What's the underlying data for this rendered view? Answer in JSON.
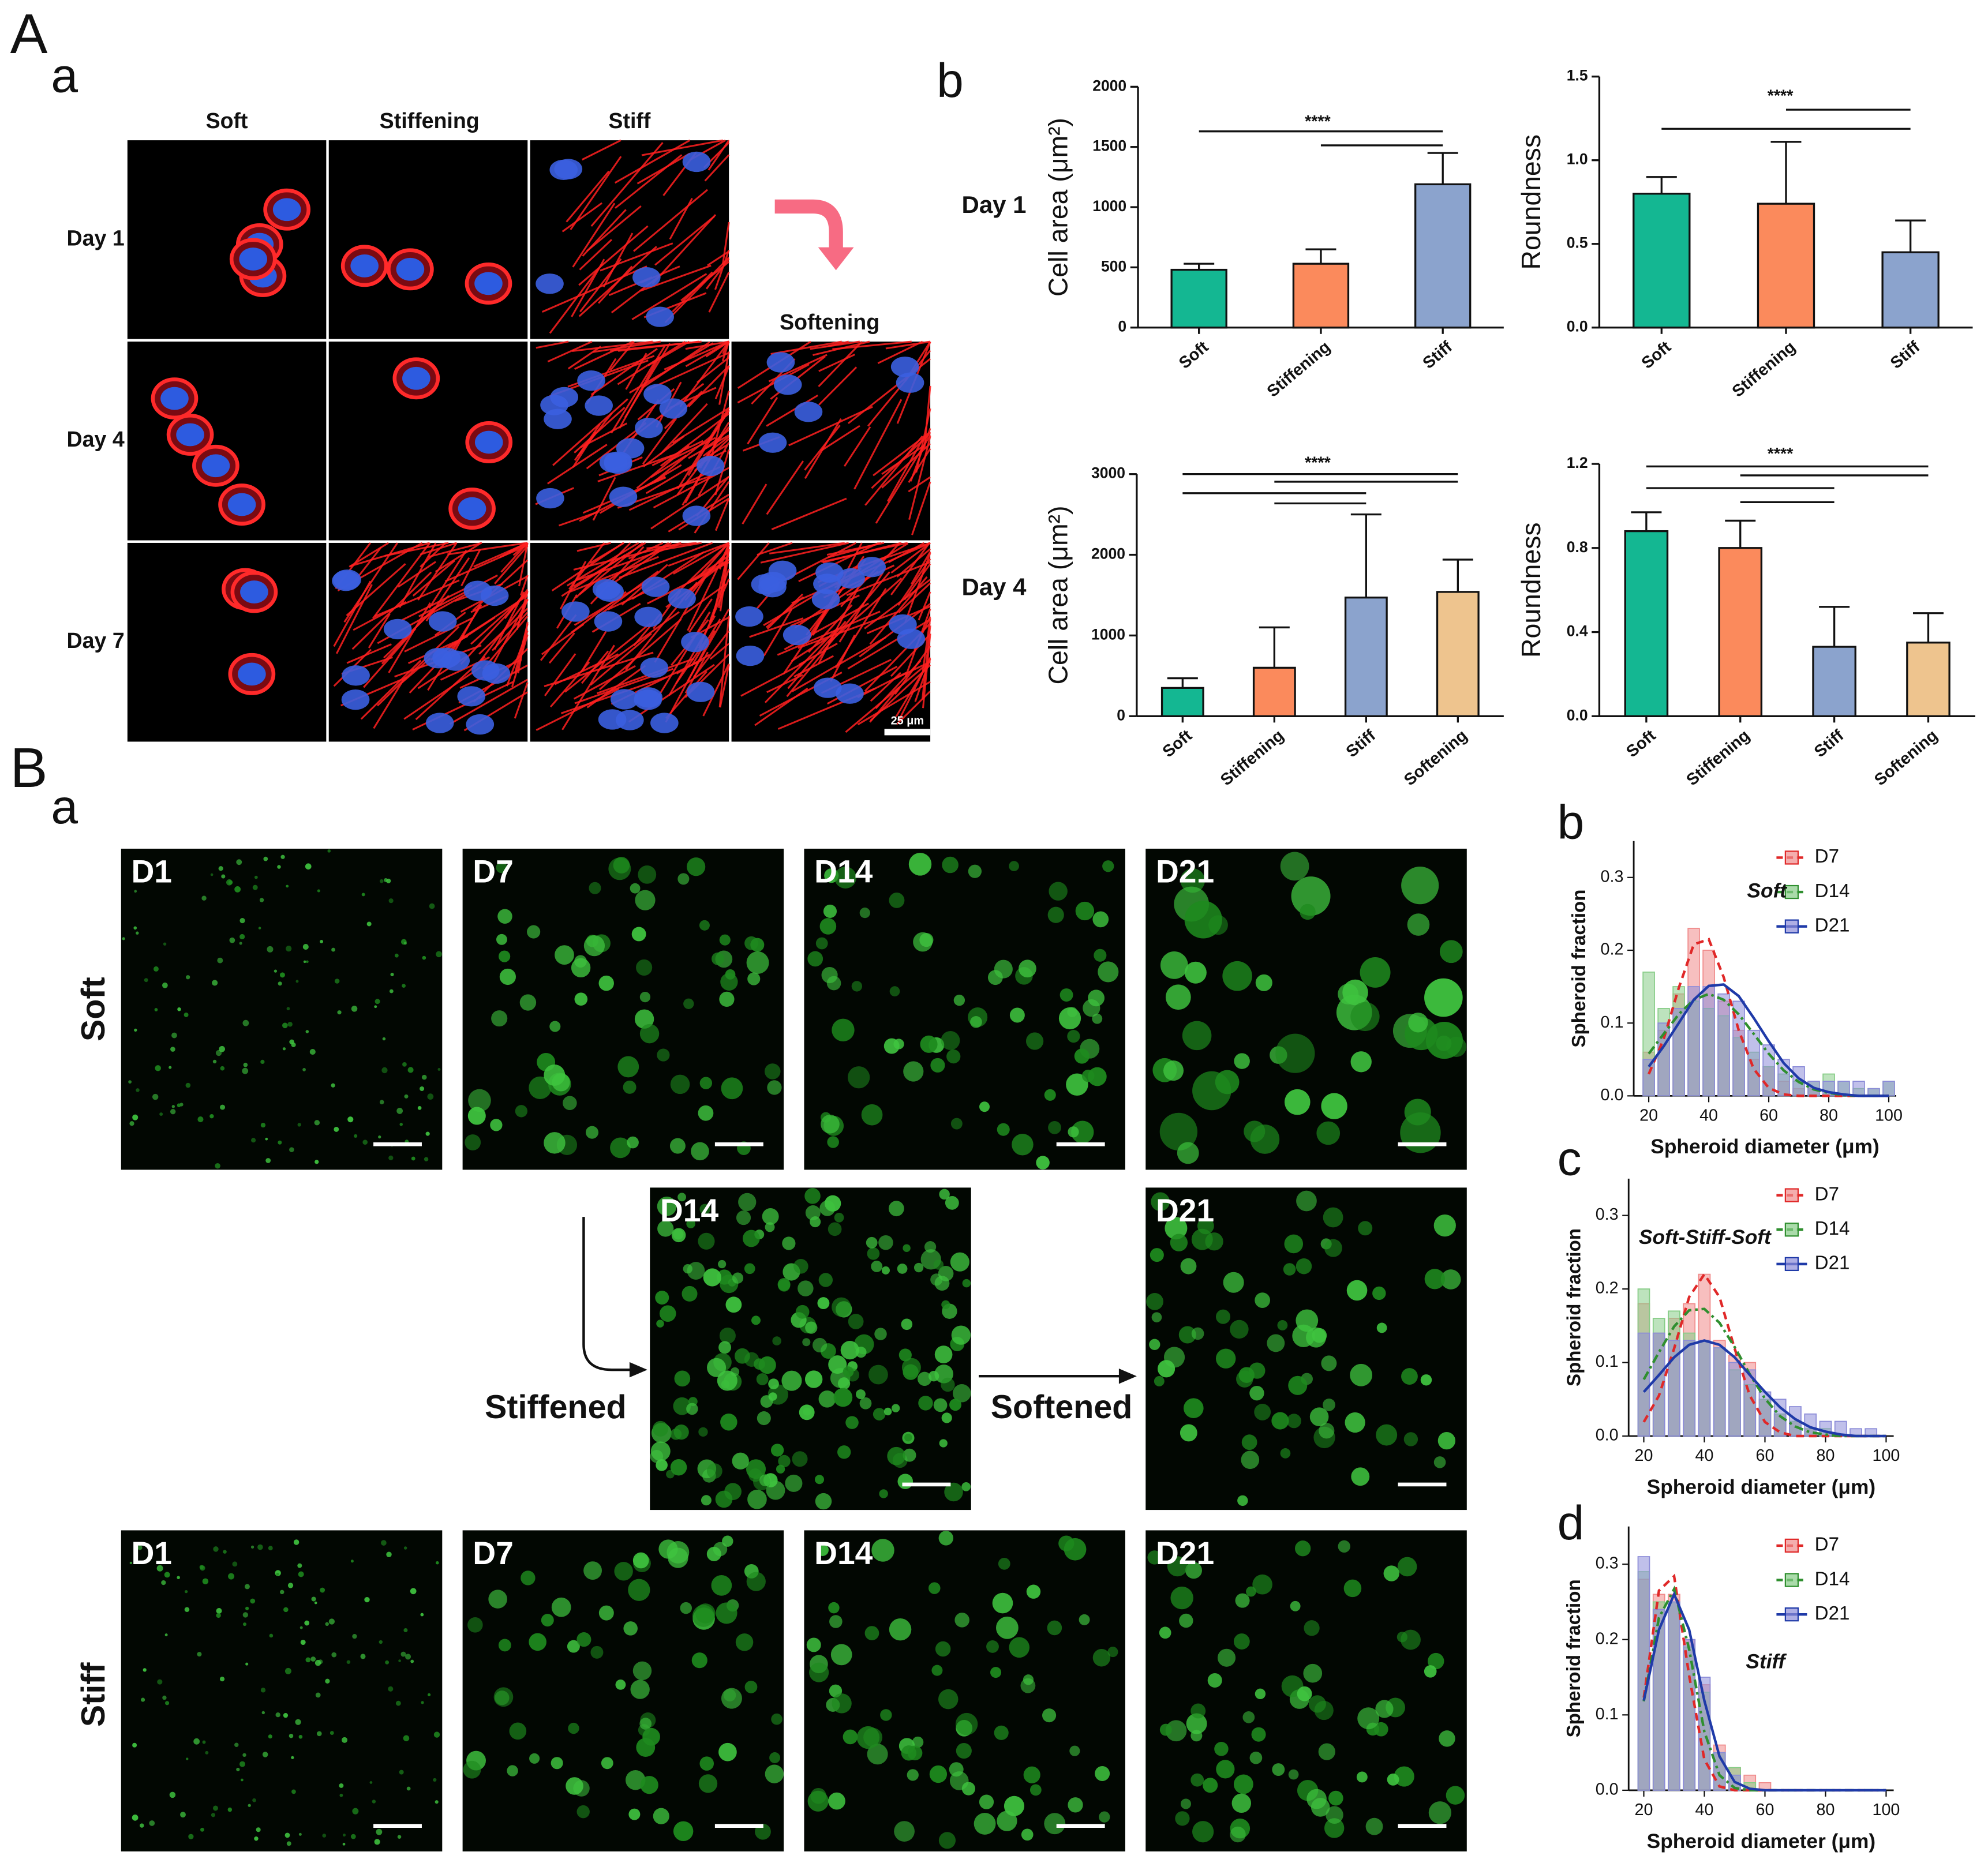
{
  "panel_A": {
    "label": "A",
    "sublabel_a": "a",
    "sublabel_b": "b",
    "columns": [
      "Soft",
      "Stiffening",
      "Stiff"
    ],
    "softening": "Softening",
    "rows": [
      "Day 1",
      "Day 4",
      "Day 7"
    ],
    "scale_bar": "25 μm",
    "chart_rows": [
      "Day 1",
      "Day 4"
    ]
  },
  "panel_B": {
    "label": "B",
    "sublabel_a": "a",
    "row_labels": [
      "Soft",
      "Stiff"
    ],
    "soft_tiles": [
      "D1",
      "D7",
      "D14",
      "D21"
    ],
    "middle_tiles": [
      "D14",
      "D21"
    ],
    "stiff_tiles": [
      "D1",
      "D7",
      "D14",
      "D21"
    ],
    "stiffened": "Stiffened",
    "softened": "Softened"
  },
  "chart_data": [
    {
      "type": "bar",
      "ylabel": "Cell area (μm²)",
      "categories": [
        "Soft",
        "Stiffening",
        "Stiff"
      ],
      "values": [
        480,
        530,
        1190
      ],
      "errors": [
        50,
        120,
        260
      ],
      "colors": [
        "#14b792",
        "#fb8a5c",
        "#8ba3cd"
      ],
      "ylim": [
        0,
        2000
      ],
      "yticks": [
        0,
        500,
        1000,
        1500,
        2000
      ],
      "significance": "****"
    },
    {
      "type": "bar",
      "ylabel": "Roundness",
      "categories": [
        "Soft",
        "Stiffening",
        "Stiff"
      ],
      "values": [
        0.8,
        0.74,
        0.45
      ],
      "errors": [
        0.1,
        0.37,
        0.19
      ],
      "colors": [
        "#14b792",
        "#fb8a5c",
        "#8ba3cd"
      ],
      "ylim": [
        0,
        1.5
      ],
      "yticks": [
        {
          "value": 0,
          "label": "0.0"
        },
        0.5,
        {
          "value": 1,
          "label": "1.0"
        },
        1.5
      ],
      "significance": "****"
    },
    {
      "type": "bar",
      "ylabel": "Cell area (μm²)",
      "categories": [
        "Soft",
        "Stiffening",
        "Stiff",
        "Softening"
      ],
      "values": [
        350,
        600,
        1470,
        1540
      ],
      "errors": [
        120,
        500,
        1030,
        400
      ],
      "colors": [
        "#14b792",
        "#fb8a5c",
        "#8ba3cd",
        "#eec48e"
      ],
      "ylim": [
        0,
        3000
      ],
      "yticks": [
        0,
        1000,
        2000,
        3000
      ],
      "significance": "****"
    },
    {
      "type": "bar",
      "ylabel": "Roundness",
      "categories": [
        "Soft",
        "Stiffening",
        "Stiff",
        "Softening"
      ],
      "values": [
        0.88,
        0.8,
        0.33,
        0.35
      ],
      "errors": [
        0.09,
        0.13,
        0.19,
        0.14
      ],
      "colors": [
        "#14b792",
        "#fb8a5c",
        "#8ba3cd",
        "#eec48e"
      ],
      "ylim": [
        0,
        1.2
      ],
      "yticks": [
        {
          "value": 0,
          "label": "0.0"
        },
        0.4,
        0.8,
        1.2
      ],
      "significance": "****"
    },
    {
      "type": "histogram",
      "panel_label": "b",
      "annotation": "Soft",
      "xlabel": "Spheroid diameter (μm)",
      "ylabel": "Spheroid fraction",
      "bins": [
        17.5,
        22.5,
        27.5,
        32.5,
        37.5,
        42.5,
        47.5,
        52.5,
        57.5,
        62.5,
        67.5,
        72.5,
        77.5,
        82.5,
        87.5,
        92.5,
        97.5,
        102.5
      ],
      "xlim": [
        15,
        102.5
      ],
      "xticks": [
        20,
        40,
        60,
        80,
        100
      ],
      "ylim": [
        0,
        0.35
      ],
      "yticks": [
        {
          "value": 0,
          "label": "0.0"
        },
        0.1,
        0.2,
        0.3
      ],
      "legend": "top-right",
      "series": [
        {
          "name": "D7",
          "color": "#f08a8a",
          "line_color": "#e02828",
          "dashed": true,
          "values": [
            0.06,
            0.09,
            0.14,
            0.23,
            0.2,
            0.13,
            0.09,
            0.05,
            0.04,
            0.02,
            0.01,
            0.01,
            0,
            0,
            0,
            0,
            0
          ],
          "fit": [
            0.03,
            0.078,
            0.148,
            0.208,
            0.215,
            0.163,
            0.09,
            0.037,
            0.011,
            0.002,
            0,
            0,
            0,
            0,
            0,
            0,
            0
          ]
        },
        {
          "name": "D14",
          "color": "#86cc86",
          "line_color": "#2f8f2f",
          "dashed": true,
          "values": [
            0.17,
            0.12,
            0.15,
            0.13,
            0.12,
            0.11,
            0.08,
            0.06,
            0.04,
            0.03,
            0.02,
            0.02,
            0.03,
            0.02,
            0.01,
            0.01,
            0.02
          ],
          "fit": [
            0.058,
            0.085,
            0.112,
            0.132,
            0.14,
            0.132,
            0.112,
            0.085,
            0.058,
            0.035,
            0.019,
            0.009,
            0.004,
            0.001,
            0,
            0,
            0
          ]
        },
        {
          "name": "D21",
          "color": "#8c8cd8",
          "line_color": "#1f3aa8",
          "dashed": false,
          "values": [
            0.05,
            0.1,
            0.12,
            0.15,
            0.15,
            0.14,
            0.13,
            0.09,
            0.07,
            0.05,
            0.04,
            0.02,
            0.02,
            0.02,
            0.02,
            0.01,
            0.02
          ],
          "fit": [
            0.04,
            0.068,
            0.1,
            0.132,
            0.151,
            0.153,
            0.137,
            0.107,
            0.075,
            0.045,
            0.024,
            0.011,
            0.005,
            0.002,
            0,
            0,
            0
          ]
        }
      ]
    },
    {
      "type": "histogram",
      "panel_label": "c",
      "annotation": "Soft-Stiff-Soft",
      "xlabel": "Spheroid diameter (μm)",
      "ylabel": "Spheroid fraction",
      "bins": [
        17.5,
        22.5,
        27.5,
        32.5,
        37.5,
        42.5,
        47.5,
        52.5,
        57.5,
        62.5,
        67.5,
        72.5,
        77.5,
        82.5,
        87.5,
        92.5,
        97.5,
        102.5
      ],
      "xlim": [
        15,
        102.5
      ],
      "xticks": [
        20,
        40,
        60,
        80,
        100
      ],
      "ylim": [
        0,
        0.35
      ],
      "yticks": [
        {
          "value": 0,
          "label": "0.0"
        },
        0.1,
        0.2,
        0.3
      ],
      "legend": "top-right",
      "series": [
        {
          "name": "D7",
          "color": "#f08a8a",
          "line_color": "#e02828",
          "dashed": true,
          "values": [
            0.18,
            0.14,
            0.16,
            0.18,
            0.22,
            0.13,
            0.11,
            0.1,
            0.05,
            0.03,
            0.02,
            0.01,
            0,
            0,
            0,
            0,
            0
          ],
          "fit": [
            0.019,
            0.055,
            0.119,
            0.189,
            0.22,
            0.189,
            0.119,
            0.055,
            0.019,
            0.005,
            0,
            0,
            0,
            0,
            0,
            0,
            0
          ]
        },
        {
          "name": "D14",
          "color": "#86cc86",
          "line_color": "#2f8f2f",
          "dashed": true,
          "values": [
            0.2,
            0.16,
            0.17,
            0.14,
            0.13,
            0.12,
            0.09,
            0.07,
            0.05,
            0.03,
            0.02,
            0.01,
            0.01,
            0,
            0,
            0,
            0
          ],
          "fit": [
            0.077,
            0.114,
            0.149,
            0.171,
            0.173,
            0.154,
            0.121,
            0.084,
            0.051,
            0.027,
            0.013,
            0.005,
            0.002,
            0,
            0,
            0,
            0
          ]
        },
        {
          "name": "D21",
          "color": "#8c8cd8",
          "line_color": "#1f3aa8",
          "dashed": false,
          "values": [
            0.14,
            0.14,
            0.13,
            0.13,
            0.13,
            0.12,
            0.1,
            0.09,
            0.06,
            0.05,
            0.04,
            0.03,
            0.02,
            0.02,
            0.01,
            0.01,
            0
          ],
          "fit": [
            0.06,
            0.083,
            0.107,
            0.124,
            0.13,
            0.124,
            0.107,
            0.083,
            0.06,
            0.039,
            0.023,
            0.012,
            0.006,
            0.002,
            0,
            0,
            0
          ]
        }
      ]
    },
    {
      "type": "histogram",
      "panel_label": "d",
      "annotation": "Stiff",
      "xlabel": "Spheroid diameter (μm)",
      "ylabel": "Spheroid fraction",
      "bins": [
        17.5,
        22.5,
        27.5,
        32.5,
        37.5,
        42.5,
        47.5,
        52.5,
        57.5,
        62.5,
        67.5,
        72.5,
        77.5,
        82.5,
        87.5,
        92.5,
        97.5,
        102.5
      ],
      "xlim": [
        15,
        102.5
      ],
      "xticks": [
        20,
        40,
        60,
        80,
        100
      ],
      "ylim": [
        0,
        0.35
      ],
      "yticks": [
        {
          "value": 0,
          "label": "0.0"
        },
        0.1,
        0.2,
        0.3
      ],
      "legend": "top-right",
      "series": [
        {
          "name": "D7",
          "color": "#f08a8a",
          "line_color": "#e02828",
          "dashed": true,
          "values": [
            0.28,
            0.26,
            0.26,
            0.2,
            0.14,
            0.06,
            0.03,
            0.02,
            0.01,
            0,
            0,
            0,
            0,
            0,
            0,
            0,
            0
          ],
          "fit": [
            0.123,
            0.265,
            0.284,
            0.152,
            0.041,
            0.005,
            0,
            0,
            0,
            0,
            0,
            0,
            0,
            0,
            0,
            0,
            0
          ]
        },
        {
          "name": "D14",
          "color": "#86cc86",
          "line_color": "#2f8f2f",
          "dashed": true,
          "values": [
            0.29,
            0.25,
            0.25,
            0.19,
            0.13,
            0.05,
            0.03,
            0.01,
            0,
            0,
            0,
            0,
            0,
            0,
            0,
            0,
            0
          ],
          "fit": [
            0.118,
            0.229,
            0.267,
            0.187,
            0.078,
            0.02,
            0.003,
            0,
            0,
            0,
            0,
            0,
            0,
            0,
            0,
            0,
            0
          ]
        },
        {
          "name": "D21",
          "color": "#8c8cd8",
          "line_color": "#1f3aa8",
          "dashed": false,
          "values": [
            0.31,
            0.24,
            0.25,
            0.2,
            0.15,
            0.05,
            0.02,
            0,
            0,
            0,
            0,
            0,
            0,
            0,
            0,
            0,
            0
          ],
          "fit": [
            0.119,
            0.213,
            0.26,
            0.213,
            0.119,
            0.045,
            0.011,
            0.002,
            0,
            0,
            0,
            0,
            0,
            0,
            0,
            0,
            0
          ]
        }
      ]
    }
  ]
}
